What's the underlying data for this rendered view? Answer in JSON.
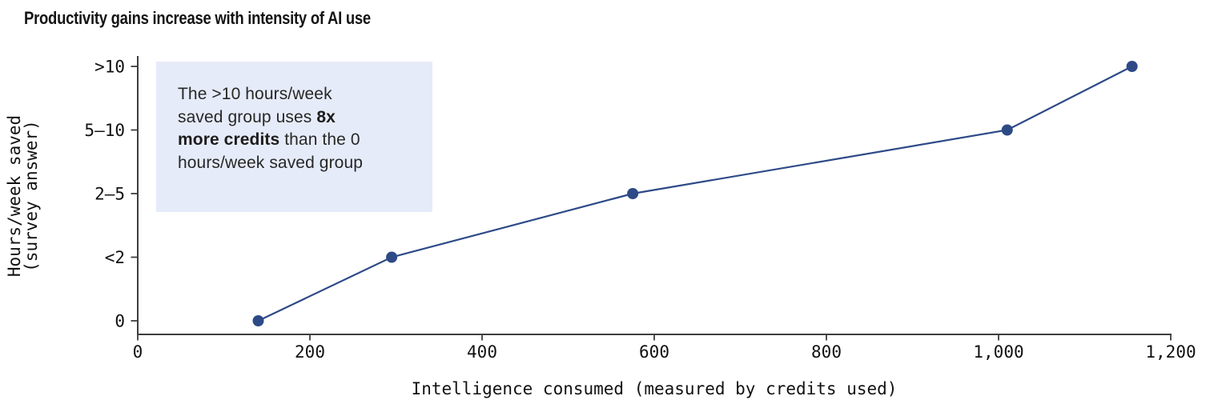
{
  "chart_data": {
    "type": "line",
    "title": "Productivity gains increase with intensity of AI use",
    "xlabel": "Intelligence consumed (measured by credits used)",
    "ylabel": "Hours/week saved\n(survey answer)",
    "xlim": [
      0,
      1200
    ],
    "x_ticks": [
      0,
      200,
      400,
      600,
      800,
      1000,
      1200
    ],
    "x_tick_labels": [
      "0",
      "200",
      "400",
      "600",
      "800",
      "1,000",
      "1,200"
    ],
    "y_categories": [
      "0",
      "<2",
      "2–5",
      "5–10",
      ">10"
    ],
    "grid": false,
    "legend": "none",
    "marker": "circle",
    "points": [
      {
        "x": 140,
        "y": "0"
      },
      {
        "x": 295,
        "y": "<2"
      },
      {
        "x": 575,
        "y": "2–5"
      },
      {
        "x": 1010,
        "y": "5–10"
      },
      {
        "x": 1155,
        "y": ">10"
      }
    ]
  },
  "annotation": {
    "full_text": "The >10 hours/week saved group uses 8x more credits than the 0 hours/week saved group",
    "line1": "The >10 hours/week",
    "line2_pre": "saved group uses ",
    "line2_bold": "8x",
    "line3_bold": "more credits",
    "line3_post": " than the 0",
    "line4": "hours/week saved group"
  },
  "colors": {
    "line": "#2d4a87",
    "marker": "#2d4a87",
    "annotation_bg": "#e6ebf9",
    "axis": "#3e3e3e",
    "tick_text": "#111111",
    "title_text": "#141414"
  }
}
